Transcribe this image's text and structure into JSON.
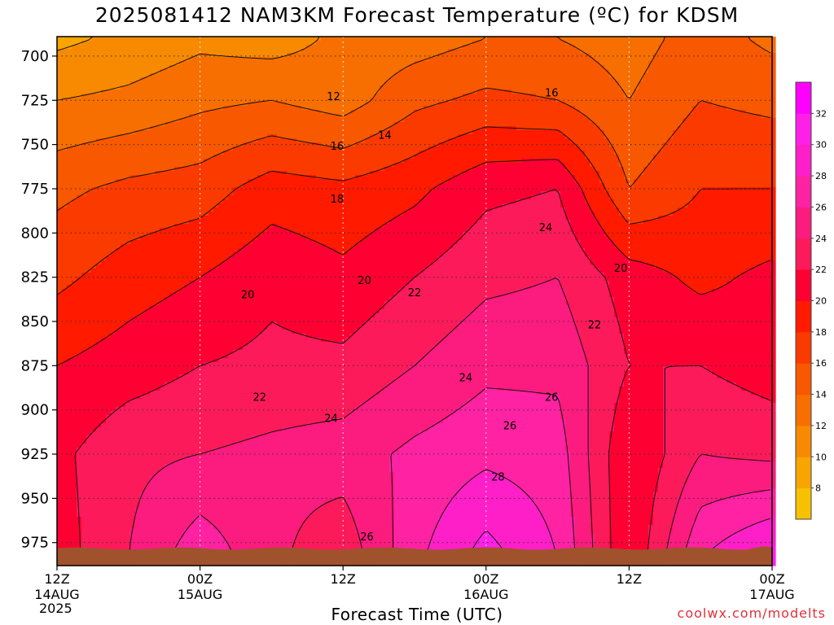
{
  "chart_data": {
    "type": "heatmap",
    "title": "2025081412 NAM3KM Forecast Temperature (ºC) for KDSM",
    "xlabel": "Forecast Time (UTC)",
    "ylabel": "",
    "y_scale": "pressure (hPa), decreasing upward",
    "ylim": [
      988,
      689
    ],
    "xlim": [
      0,
      60
    ],
    "x_ticks": [
      {
        "line1": "12Z",
        "line2": "14AUG",
        "hour": 0
      },
      {
        "line1": "00Z",
        "line2": "15AUG",
        "hour": 12
      },
      {
        "line1": "12Z",
        "line2": "",
        "hour": 24
      },
      {
        "line1": "00Z",
        "line2": "16AUG",
        "hour": 36
      },
      {
        "line1": "12Z",
        "line2": "",
        "hour": 48
      },
      {
        "line1": "00Z",
        "line2": "17AUG",
        "hour": 60
      }
    ],
    "x_year": "2025",
    "y_ticks": [
      "700",
      "725",
      "750",
      "775",
      "800",
      "825",
      "850",
      "875",
      "900",
      "925",
      "950",
      "975"
    ],
    "y_tick_values": [
      700,
      725,
      750,
      775,
      800,
      825,
      850,
      875,
      900,
      925,
      950,
      975
    ],
    "grid": true,
    "colorbar": {
      "levels": [
        8,
        10,
        12,
        14,
        16,
        18,
        20,
        22,
        24,
        26,
        28,
        30,
        32
      ],
      "labels": [
        "8",
        "10",
        "12",
        "14",
        "16",
        "18",
        "20",
        "22",
        "24",
        "26",
        "28",
        "30",
        "32"
      ],
      "colors": [
        "#f7c100",
        "#f8a500",
        "#f78a00",
        "#f76f00",
        "#f85800",
        "#fb3a00",
        "#ff1a00",
        "#ff0033",
        "#fd1a5a",
        "#fc1b7f",
        "#ff22a2",
        "#ff1fc8",
        "#ff20e8",
        "#ff00ff"
      ]
    },
    "contour_labels": [
      {
        "text": "12",
        "hour": 23.2,
        "p": 723
      },
      {
        "text": "16",
        "hour": 41.5,
        "p": 721
      },
      {
        "text": "14",
        "hour": 27.5,
        "p": 745
      },
      {
        "text": "16",
        "hour": 23.5,
        "p": 751
      },
      {
        "text": "18",
        "hour": 23.5,
        "p": 781
      },
      {
        "text": "24",
        "hour": 41.0,
        "p": 797
      },
      {
        "text": "20",
        "hour": 47.3,
        "p": 820
      },
      {
        "text": "20",
        "hour": 16.0,
        "p": 835
      },
      {
        "text": "20",
        "hour": 25.8,
        "p": 827
      },
      {
        "text": "22",
        "hour": 30.0,
        "p": 834
      },
      {
        "text": "22",
        "hour": 45.1,
        "p": 852
      },
      {
        "text": "24",
        "hour": 34.3,
        "p": 882
      },
      {
        "text": "22",
        "hour": 17.0,
        "p": 893
      },
      {
        "text": "26",
        "hour": 41.5,
        "p": 893
      },
      {
        "text": "24",
        "hour": 23.0,
        "p": 905
      },
      {
        "text": "26",
        "hour": 38.0,
        "p": 909
      },
      {
        "text": "28",
        "hour": 37.0,
        "p": 938
      },
      {
        "text": "26",
        "hour": 26.0,
        "p": 972
      }
    ],
    "temperature_field": {
      "hours": [
        0,
        6,
        12,
        18,
        24,
        30,
        36,
        42,
        48,
        54,
        60
      ],
      "pressures": [
        690,
        725,
        775,
        825,
        875,
        925,
        985
      ],
      "values": [
        [
          9.5,
          10.5,
          11.5,
          11.0,
          12.5,
          13.0,
          14.0,
          14.0,
          13.0,
          15.0,
          13.5
        ],
        [
          12.0,
          12.5,
          13.5,
          14.0,
          13.0,
          15.5,
          16.5,
          16.0,
          14.0,
          16.0,
          15.5
        ],
        [
          15.5,
          16.5,
          17.0,
          19.0,
          18.5,
          19.5,
          21.5,
          22.0,
          16.0,
          18.0,
          18.0
        ],
        [
          17.5,
          19.0,
          20.0,
          21.5,
          20.5,
          22.0,
          23.5,
          24.0,
          21.0,
          19.5,
          20.5
        ],
        [
          20.0,
          21.0,
          22.0,
          22.5,
          22.5,
          24.0,
          25.5,
          25.5,
          22.0,
          22.0,
          21.0
        ],
        [
          21.5,
          23.5,
          24.0,
          24.5,
          25.0,
          26.5,
          27.5,
          27.0,
          20.0,
          24.0,
          23.5
        ],
        [
          21.0,
          24.0,
          27.5,
          24.5,
          22.5,
          27.5,
          31.0,
          28.0,
          20.0,
          28.0,
          31.0
        ]
      ]
    },
    "ground_color": "#a0522d"
  },
  "footer": {
    "credit": "coolwx.com/modelts"
  }
}
